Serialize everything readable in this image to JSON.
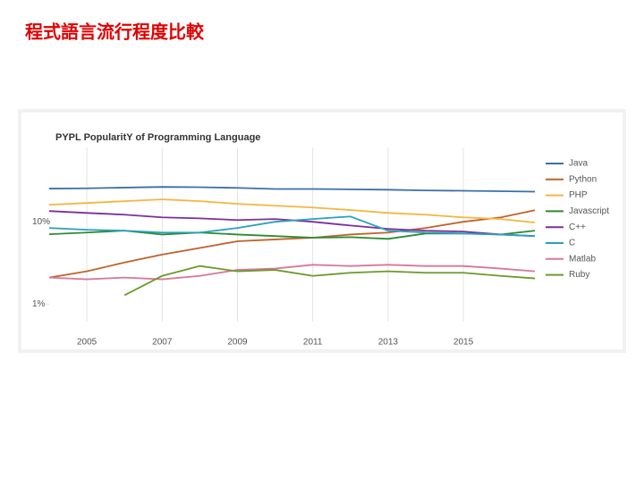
{
  "header": {
    "title": "程式語言流行程度比較"
  },
  "chart_data": {
    "type": "line",
    "title": "PYPL PopularitY of Programming Language",
    "x": [
      2004,
      2005,
      2006,
      2007,
      2008,
      2009,
      2010,
      2011,
      2012,
      2013,
      2014,
      2015,
      2016,
      2016.9
    ],
    "xlim": [
      2004,
      2016.9
    ],
    "xticks": [
      2005,
      2007,
      2009,
      2011,
      2013,
      2015
    ],
    "ylim": [
      0.5,
      80
    ],
    "log_scale": true,
    "yticks": [
      {
        "value": 1,
        "label": "1%"
      },
      {
        "value": 10,
        "label": "10%"
      }
    ],
    "grid": "x",
    "legend": "right",
    "series": [
      {
        "name": "Java",
        "color": "#3c6fa8",
        "values": [
          25.3,
          25.5,
          26,
          26.5,
          26.3,
          25.8,
          25,
          25,
          24.8,
          24.5,
          24,
          23.8,
          23.5,
          23.2
        ]
      },
      {
        "name": "Python",
        "color": "#c0622a",
        "values": [
          2.1,
          2.5,
          3.2,
          4.0,
          4.8,
          5.8,
          6.1,
          6.4,
          7.0,
          7.4,
          8.4,
          10,
          11.3,
          13.8
        ]
      },
      {
        "name": "PHP",
        "color": "#f5b540",
        "values": [
          16.1,
          16.9,
          17.8,
          18.7,
          17.8,
          16.5,
          15.7,
          14.9,
          13.9,
          12.8,
          12.2,
          11.3,
          10.8,
          9.8
        ]
      },
      {
        "name": "Javascript",
        "color": "#2e8b2e",
        "values": [
          7.05,
          7.4,
          7.8,
          7.0,
          7.4,
          7.0,
          6.7,
          6.4,
          6.5,
          6.2,
          7.2,
          7.2,
          7.0,
          7.8
        ]
      },
      {
        "name": "C++",
        "color": "#7b2f9e",
        "values": [
          13.5,
          12.8,
          12.2,
          11.3,
          11.0,
          10.5,
          10.8,
          10,
          9.0,
          8.2,
          7.8,
          7.6,
          7.0,
          6.7
        ]
      },
      {
        "name": "C",
        "color": "#2aa0c0",
        "values": [
          8.4,
          8.0,
          7.8,
          7.4,
          7.4,
          8.4,
          10,
          10.8,
          11.6,
          7.8,
          7.4,
          7.2,
          7.0,
          6.7
        ]
      },
      {
        "name": "Matlab",
        "color": "#d9779a",
        "values": [
          2.1,
          2.0,
          2.1,
          2.0,
          2.2,
          2.6,
          2.7,
          3.0,
          2.9,
          3.0,
          2.9,
          2.9,
          2.7,
          2.5
        ]
      },
      {
        "name": "Ruby",
        "color": "#6a9a2a",
        "values": [
          null,
          null,
          1.28,
          2.2,
          2.9,
          2.5,
          2.6,
          2.2,
          2.4,
          2.5,
          2.4,
          2.4,
          2.2,
          2.05
        ]
      }
    ]
  }
}
